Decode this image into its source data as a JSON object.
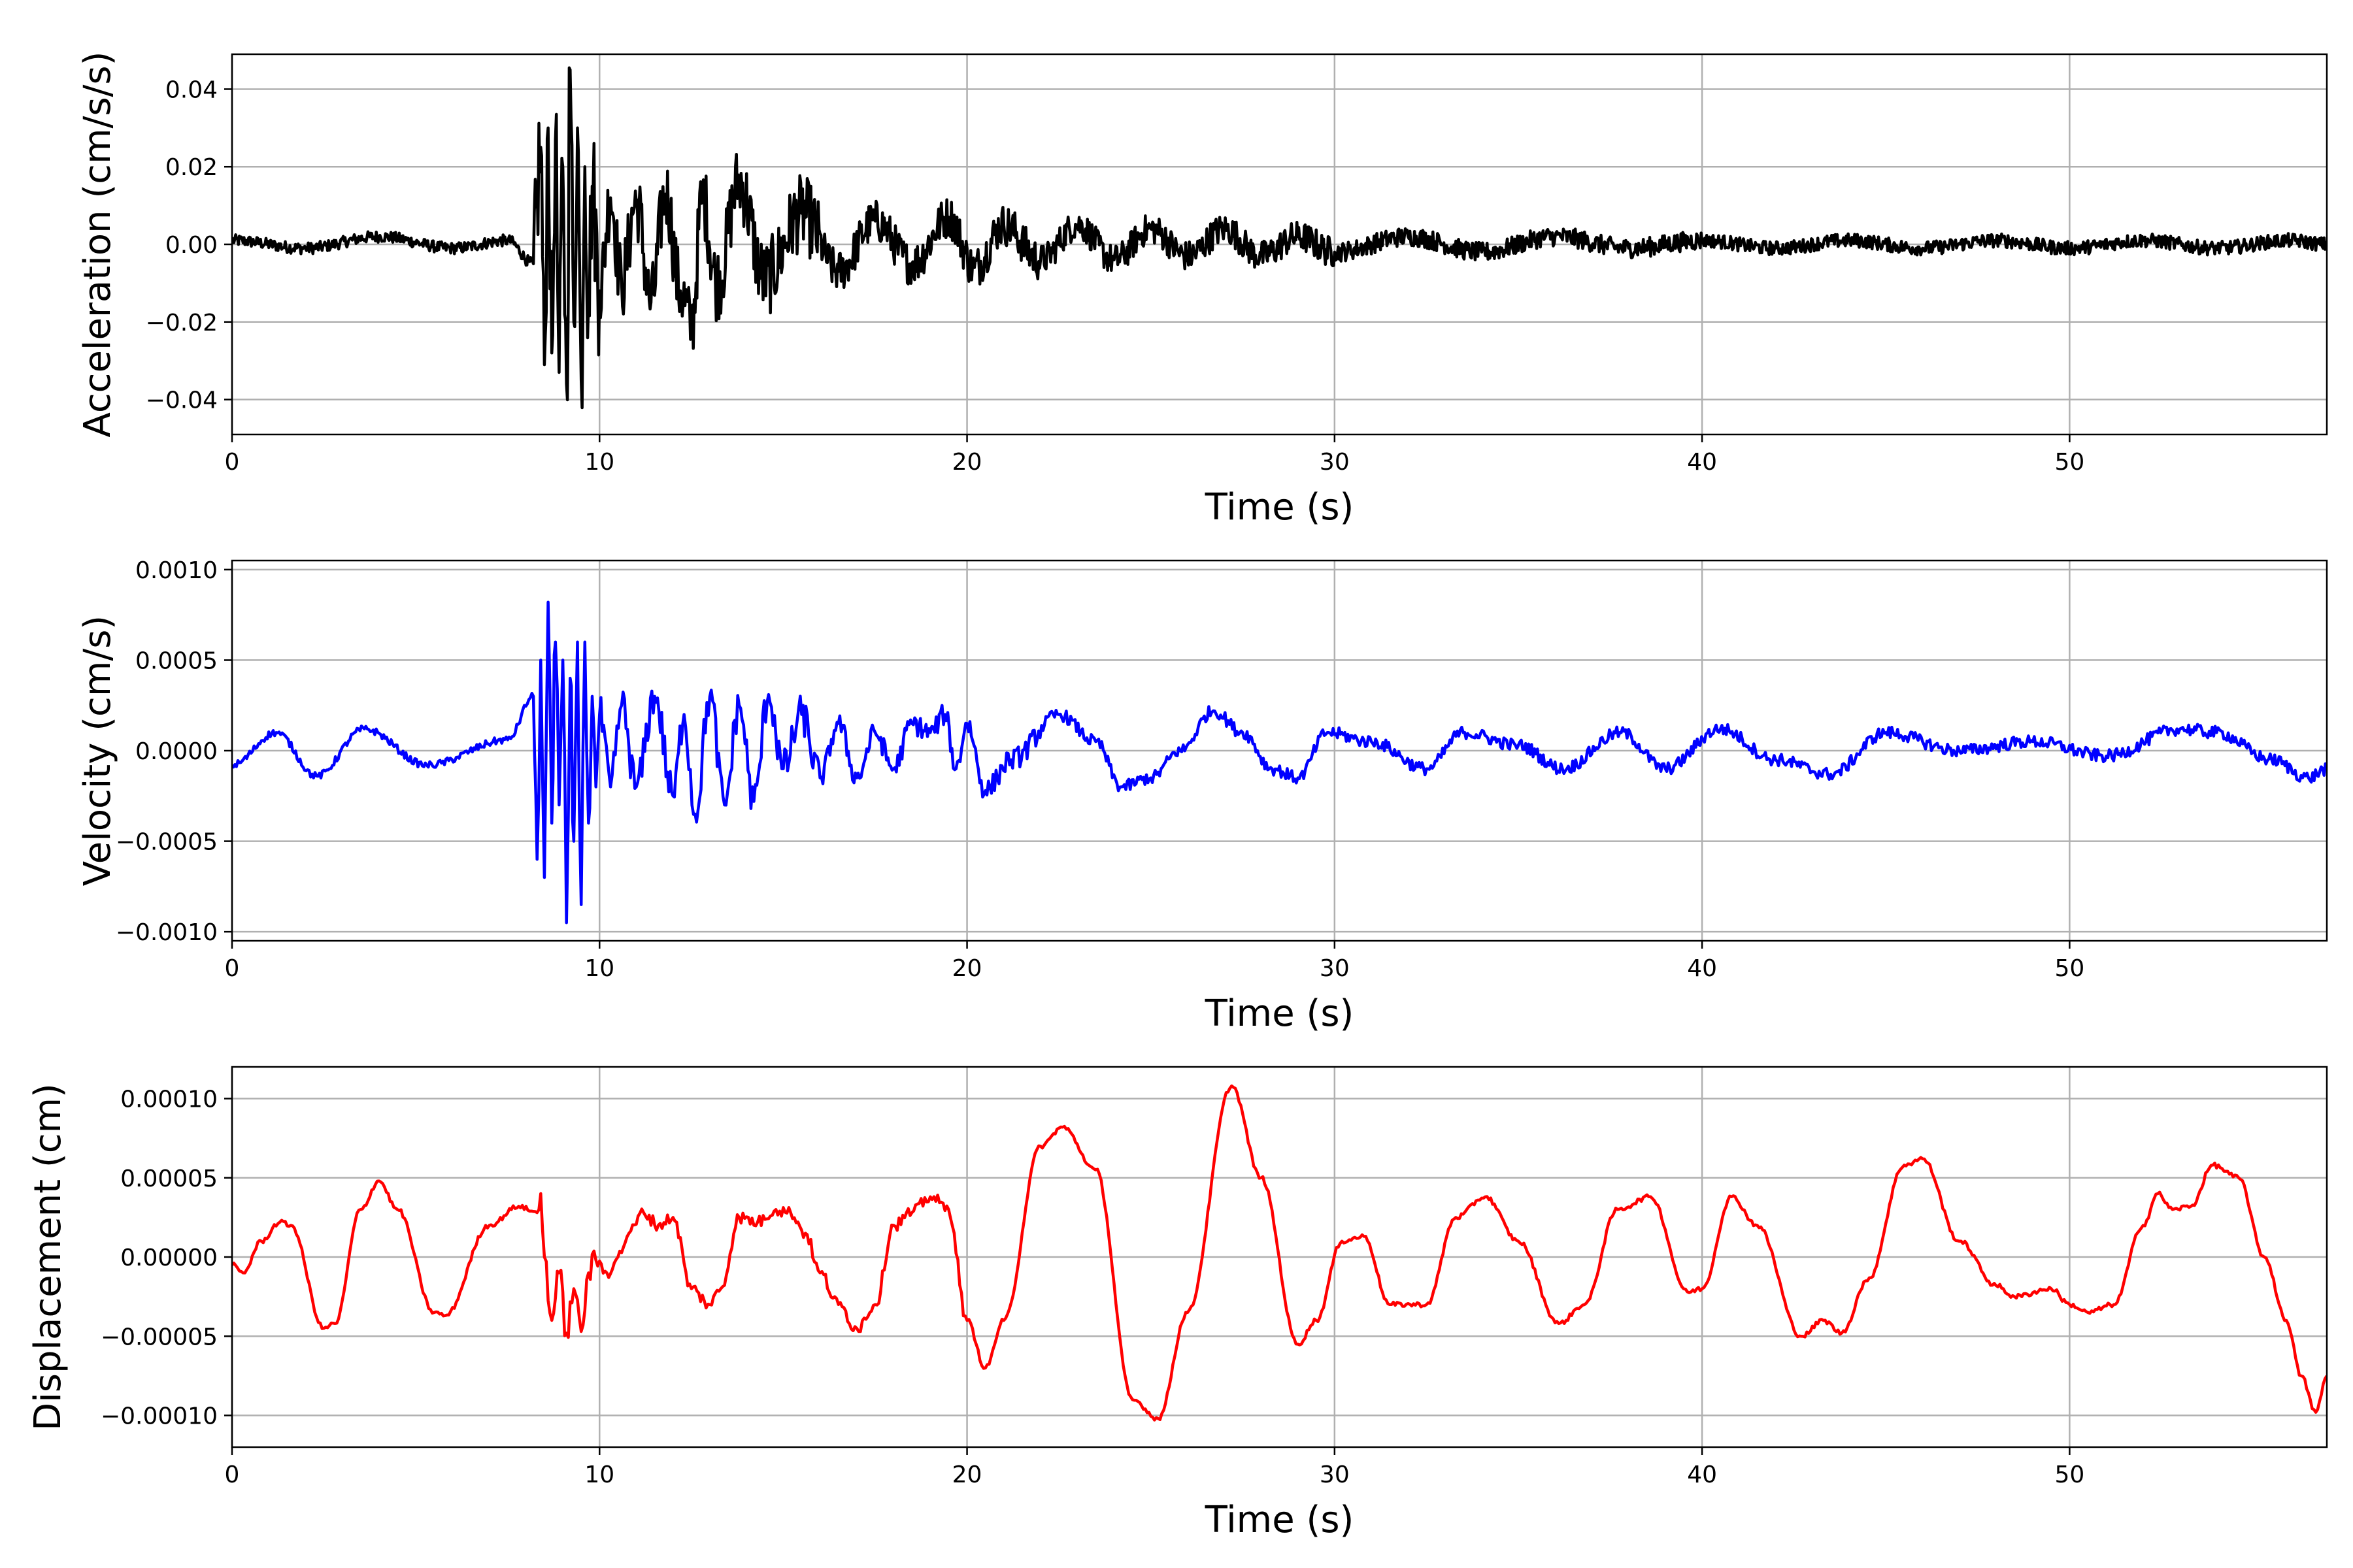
{
  "chart_data": [
    {
      "type": "line",
      "title": "",
      "xlabel": "Time (s)",
      "ylabel": "Acceleration (cm/s/s)",
      "xlim": [
        0,
        57
      ],
      "ylim": [
        -0.049,
        0.049
      ],
      "xticks": [
        0,
        10,
        20,
        30,
        40,
        50
      ],
      "xtick_labels": [
        "0",
        "10",
        "20",
        "30",
        "40",
        "50"
      ],
      "yticks": [
        -0.04,
        -0.02,
        0.0,
        0.02,
        0.04
      ],
      "ytick_labels": [
        "−0.04",
        "−0.02",
        "0.00",
        "0.02",
        "0.04"
      ],
      "grid": true,
      "color": "#000000",
      "series": [
        {
          "x": [
            0,
            2,
            4,
            6,
            7.5,
            8.2,
            8.4,
            8.5,
            8.6,
            8.7,
            8.8,
            8.9,
            9.0,
            9.1,
            9.2,
            9.3,
            9.4,
            9.5,
            9.6,
            9.7,
            9.8,
            10.0,
            10.3,
            10.6,
            11.0,
            11.4,
            11.8,
            12.2,
            12.5,
            12.8,
            13.2,
            13.8,
            14.5,
            15.5,
            16.5,
            17.5,
            18.5,
            19.5,
            20.2,
            21,
            22,
            23,
            24,
            25,
            26,
            27,
            28,
            29,
            30,
            32,
            34,
            36,
            38,
            40,
            42,
            44,
            46,
            48,
            50,
            52,
            54,
            56,
            57
          ],
          "y": [
            0.001,
            -0.001,
            0.002,
            -0.001,
            0.001,
            -0.005,
            0.025,
            -0.031,
            0.03,
            -0.028,
            0.027,
            -0.033,
            0.02,
            -0.036,
            0.045,
            -0.02,
            0.03,
            -0.035,
            0.02,
            -0.015,
            0.015,
            -0.012,
            0.012,
            -0.01,
            0.011,
            -0.015,
            0.013,
            -0.012,
            -0.021,
            0.012,
            -0.01,
            0.016,
            -0.009,
            0.008,
            -0.007,
            0.006,
            -0.005,
            0.007,
            -0.006,
            0.005,
            -0.004,
            0.005,
            -0.004,
            0.004,
            -0.003,
            0.004,
            -0.003,
            0.002,
            -0.002,
            0.002,
            -0.002,
            0.002,
            -0.001,
            0.001,
            -0.001,
            0.001,
            -0.001,
            0.001,
            -0.001,
            0.001,
            -0.001,
            0.001,
            0.0
          ]
        }
      ]
    },
    {
      "type": "line",
      "title": "",
      "xlabel": "Time (s)",
      "ylabel": "Velocity (cm/s)",
      "xlim": [
        0,
        57
      ],
      "ylim": [
        -0.00105,
        0.00105
      ],
      "xticks": [
        0,
        10,
        20,
        30,
        40,
        50
      ],
      "xtick_labels": [
        "0",
        "10",
        "20",
        "30",
        "40",
        "50"
      ],
      "yticks": [
        -0.001,
        -0.0005,
        0.0,
        0.0005,
        0.001
      ],
      "ytick_labels": [
        "−0.0010",
        "−0.0005",
        "0.0000",
        "0.0005",
        "0.0010"
      ],
      "grid": true,
      "color": "#0000ff",
      "series": [
        {
          "x": [
            0,
            1.2,
            2.3,
            3.6,
            5.3,
            7.5,
            8.2,
            8.3,
            8.4,
            8.5,
            8.6,
            8.7,
            8.8,
            8.9,
            9.0,
            9.1,
            9.2,
            9.3,
            9.4,
            9.5,
            9.6,
            9.7,
            9.8,
            9.9,
            10.0,
            10.3,
            10.6,
            11.0,
            11.5,
            12.0,
            12.3,
            12.6,
            13.0,
            13.4,
            13.8,
            14.2,
            14.6,
            15.0,
            15.5,
            16.0,
            16.5,
            17.0,
            17.5,
            18.0,
            18.5,
            19.0,
            19.4,
            19.7,
            20.0,
            20.5,
            21.2,
            22.5,
            23.5,
            24.2,
            25.0,
            25.8,
            26.7,
            27.5,
            28.3,
            29.0,
            29.8,
            31.0,
            32.5,
            33.5,
            35.0,
            36.2,
            37.8,
            39.0,
            40.5,
            42.0,
            43.5,
            45.0,
            47.0,
            49.0,
            51.0,
            53.0,
            54.0,
            55.5,
            56.5,
            57.0
          ],
          "y": [
            -8e-05,
            0.0001,
            -0.00014,
            0.00012,
            -8e-05,
            6e-05,
            0.0003,
            -0.0006,
            0.0005,
            -0.0007,
            0.00082,
            -0.0004,
            0.0006,
            -0.0003,
            0.0005,
            -0.00095,
            0.0004,
            -0.0005,
            0.0006,
            -0.00085,
            0.0006,
            -0.0004,
            0.0003,
            -0.0002,
            0.0002,
            -0.0002,
            0.00025,
            -0.0002,
            0.0003,
            -0.00025,
            0.0002,
            -0.00035,
            0.0003,
            -0.0003,
            0.00025,
            -0.00028,
            0.00031,
            -0.0001,
            0.0002,
            -0.00015,
            0.00015,
            -0.00015,
            0.0001,
            -0.0001,
            0.00015,
            0.0001,
            0.0002,
            -0.0001,
            0.00015,
            -0.00022,
            -5e-05,
            0.0002,
            5e-05,
            -0.0002,
            -0.00015,
            0.0,
            0.00022,
            0.0001,
            -0.0001,
            -0.00015,
            0.0001,
            5e-05,
            -0.0001,
            0.0001,
            3e-05,
            -0.0001,
            0.0001,
            -0.0001,
            0.00012,
            -5e-05,
            -0.00013,
            0.0001,
            0.0,
            5e-05,
            -3e-05,
            0.00012,
            0.0001,
            -5e-05,
            -0.00015,
            -0.0001
          ]
        }
      ]
    },
    {
      "type": "line",
      "title": "",
      "xlabel": "Time (s)",
      "ylabel": "Displacement (cm)",
      "xlim": [
        0,
        57
      ],
      "ylim": [
        -0.00012,
        0.00012
      ],
      "xticks": [
        0,
        10,
        20,
        30,
        40,
        50
      ],
      "xtick_labels": [
        "0",
        "10",
        "20",
        "30",
        "40",
        "50"
      ],
      "yticks": [
        -0.0001,
        -5e-05,
        0.0,
        5e-05,
        0.0001
      ],
      "ytick_labels": [
        "−0.00010",
        "−0.00005",
        "0.00000",
        "0.00005",
        "0.00010"
      ],
      "grid": true,
      "color": "#ff0000",
      "series": [
        {
          "x": [
            0,
            0.3,
            0.8,
            1.3,
            1.6,
            2.5,
            2.8,
            3.5,
            4.0,
            4.5,
            5.5,
            5.8,
            7.0,
            7.8,
            8.3,
            8.4,
            8.5,
            8.7,
            8.9,
            9.1,
            9.3,
            9.5,
            9.7,
            9.9,
            10.2,
            10.5,
            10.8,
            11.2,
            11.6,
            12.0,
            12.5,
            13.0,
            13.3,
            13.8,
            14.3,
            14.8,
            15.2,
            15.6,
            16.0,
            16.5,
            17.0,
            17.5,
            18.0,
            18.5,
            19.0,
            19.5,
            20.0,
            20.5,
            21.0,
            22.0,
            22.6,
            23.5,
            24.5,
            25.2,
            26.0,
            27.2,
            28.0,
            29.0,
            29.5,
            30.2,
            30.8,
            31.5,
            32.5,
            33.3,
            34.1,
            35.0,
            36.1,
            36.8,
            37.7,
            38.6,
            39.6,
            40.0,
            40.8,
            41.5,
            42.7,
            43.3,
            43.8,
            44.5,
            45.5,
            46.0,
            47.0,
            48.0,
            48.5,
            49.5,
            50.0,
            50.5,
            51.2,
            52.0,
            52.4,
            52.8,
            53.3,
            53.9,
            54.6,
            55.3,
            55.9,
            56.3,
            56.7,
            57.0
          ],
          "y": [
            -5e-06,
            -1e-05,
            1e-05,
            2.2e-05,
            2e-05,
            -4.5e-05,
            -4.2e-05,
            3e-05,
            4.8e-05,
            3e-05,
            -3.5e-05,
            -3.7e-05,
            2e-05,
            3.2e-05,
            2.8e-05,
            4e-05,
            0.0,
            -4e-05,
            -1e-05,
            -4.8e-05,
            -2e-05,
            -4.7e-05,
            -1e-05,
            -2e-06,
            -1e-05,
            0.0,
            1.5e-05,
            2.8e-05,
            2e-05,
            2.5e-05,
            -2e-05,
            -3e-05,
            -2e-05,
            2.5e-05,
            2.2e-05,
            3e-05,
            2.8e-05,
            1.5e-05,
            -1e-05,
            -3e-05,
            -4.5e-05,
            -3e-05,
            2e-05,
            2.8e-05,
            3.8e-05,
            3e-05,
            -4e-05,
            -7e-05,
            -4e-05,
            7e-05,
            8.2e-05,
            5.5e-05,
            -9e-05,
            -0.000102,
            -3.5e-05,
            0.000108,
            5e-05,
            -5.5e-05,
            -4e-05,
            1e-05,
            1.3e-05,
            -3e-05,
            -3e-05,
            2.5e-05,
            3.8e-05,
            1e-05,
            -4.2e-05,
            -3e-05,
            3e-05,
            3.8e-05,
            -2.2e-05,
            -2e-05,
            3.8e-05,
            2e-05,
            -5e-05,
            -4e-05,
            -4.8e-05,
            -1.5e-05,
            5.8e-05,
            6.2e-05,
            1e-05,
            -1.8e-05,
            -2.5e-05,
            -2e-05,
            -3e-05,
            -3.5e-05,
            -3e-05,
            2e-05,
            4e-05,
            3e-05,
            3.2e-05,
            5.8e-05,
            5e-05,
            0.0,
            -4e-05,
            -7.5e-05,
            -9.8e-05,
            -7.5e-05
          ]
        }
      ]
    }
  ]
}
